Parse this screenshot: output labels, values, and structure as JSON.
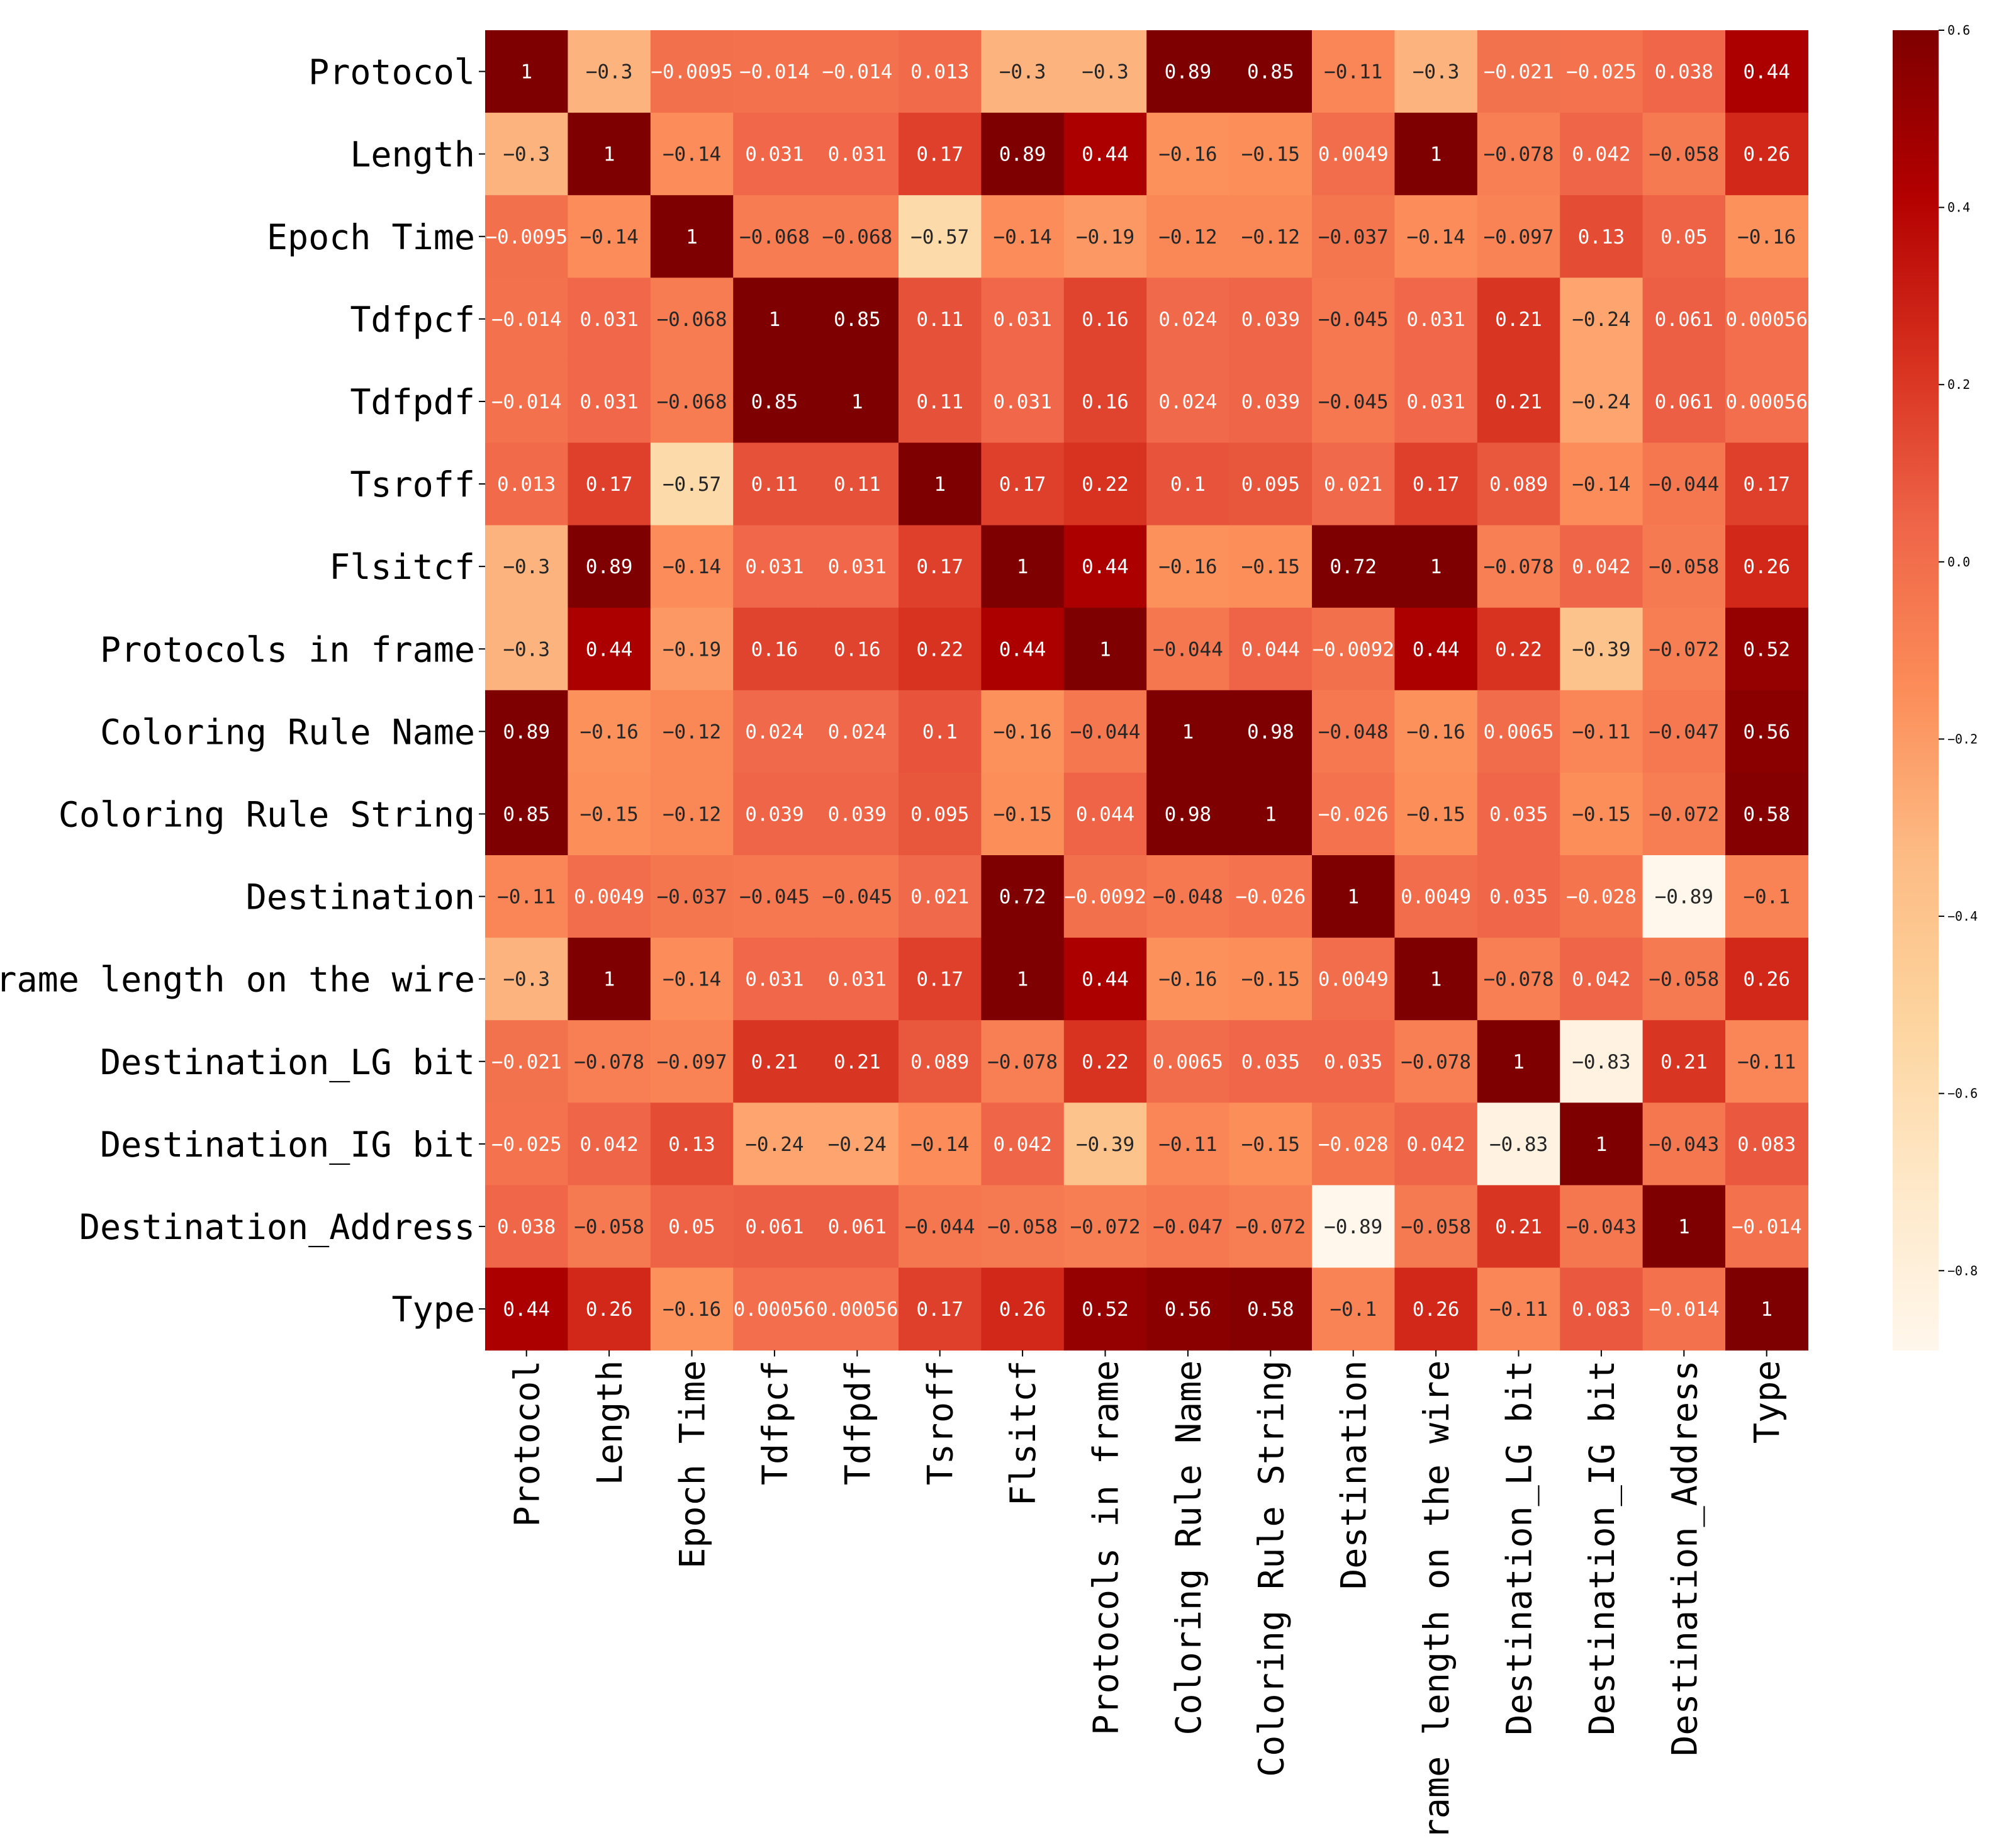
{
  "chart_data": {
    "type": "heatmap",
    "title": "",
    "xlabel": "",
    "ylabel": "",
    "labels": [
      "Protocol",
      "Length",
      "Epoch Time",
      "Tdfpcf",
      "Tdfpdf",
      "Tsroff",
      "Flsitcf",
      "Protocols in frame",
      "Coloring Rule Name",
      "Coloring Rule String",
      "Destination",
      "Frame length on the wire",
      "Destination_LG bit",
      "Destination_IG bit",
      "Destination_Address",
      "Type"
    ],
    "values": [
      [
        1,
        -0.3,
        -0.0095,
        -0.014,
        -0.014,
        0.013,
        -0.3,
        -0.3,
        0.89,
        0.85,
        -0.11,
        -0.3,
        -0.021,
        -0.025,
        0.038,
        0.44
      ],
      [
        -0.3,
        1,
        -0.14,
        0.031,
        0.031,
        0.17,
        0.89,
        0.44,
        -0.16,
        -0.15,
        0.0049,
        1,
        -0.078,
        0.042,
        -0.058,
        0.26
      ],
      [
        -0.0095,
        -0.14,
        1,
        -0.068,
        -0.068,
        -0.57,
        -0.14,
        -0.19,
        -0.12,
        -0.12,
        -0.037,
        -0.14,
        -0.097,
        0.13,
        0.05,
        -0.16
      ],
      [
        -0.014,
        0.031,
        -0.068,
        1,
        0.85,
        0.11,
        0.031,
        0.16,
        0.024,
        0.039,
        -0.045,
        0.031,
        0.21,
        -0.24,
        0.061,
        0.00056
      ],
      [
        -0.014,
        0.031,
        -0.068,
        0.85,
        1,
        0.11,
        0.031,
        0.16,
        0.024,
        0.039,
        -0.045,
        0.031,
        0.21,
        -0.24,
        0.061,
        0.00056
      ],
      [
        0.013,
        0.17,
        -0.57,
        0.11,
        0.11,
        1,
        0.17,
        0.22,
        0.1,
        0.095,
        0.021,
        0.17,
        0.089,
        -0.14,
        -0.044,
        0.17
      ],
      [
        -0.3,
        0.89,
        -0.14,
        0.031,
        0.031,
        0.17,
        1,
        0.44,
        -0.16,
        -0.15,
        0.72,
        1,
        -0.078,
        0.042,
        -0.058,
        0.26
      ],
      [
        -0.3,
        0.44,
        -0.19,
        0.16,
        0.16,
        0.22,
        0.44,
        1,
        -0.044,
        0.044,
        -0.0092,
        0.44,
        0.22,
        -0.39,
        -0.072,
        0.52
      ],
      [
        0.89,
        -0.16,
        -0.12,
        0.024,
        0.024,
        0.1,
        -0.16,
        -0.044,
        1,
        0.98,
        -0.048,
        -0.16,
        0.0065,
        -0.11,
        -0.047,
        0.56
      ],
      [
        0.85,
        -0.15,
        -0.12,
        0.039,
        0.039,
        0.095,
        -0.15,
        0.044,
        0.98,
        1,
        -0.026,
        -0.15,
        0.035,
        -0.15,
        -0.072,
        0.58
      ],
      [
        -0.11,
        0.0049,
        -0.037,
        -0.045,
        -0.045,
        0.021,
        0.72,
        -0.0092,
        -0.048,
        -0.026,
        1,
        0.0049,
        0.035,
        -0.028,
        -0.89,
        -0.1
      ],
      [
        -0.3,
        1,
        -0.14,
        0.031,
        0.031,
        0.17,
        1,
        0.44,
        -0.16,
        -0.15,
        0.0049,
        1,
        -0.078,
        0.042,
        -0.058,
        0.26
      ],
      [
        -0.021,
        -0.078,
        -0.097,
        0.21,
        0.21,
        0.089,
        -0.078,
        0.22,
        0.0065,
        0.035,
        0.035,
        -0.078,
        1,
        -0.83,
        0.21,
        -0.11
      ],
      [
        -0.025,
        0.042,
        0.13,
        -0.24,
        -0.24,
        -0.14,
        0.042,
        -0.39,
        -0.11,
        -0.15,
        -0.028,
        0.042,
        -0.83,
        1,
        -0.043,
        0.083
      ],
      [
        0.038,
        -0.058,
        0.05,
        0.061,
        0.061,
        -0.044,
        -0.058,
        -0.072,
        -0.047,
        -0.072,
        -0.89,
        -0.058,
        0.21,
        -0.043,
        1,
        -0.014
      ],
      [
        0.44,
        0.26,
        -0.16,
        0.00056,
        0.00056,
        0.17,
        0.26,
        0.52,
        0.56,
        0.58,
        -0.1,
        0.26,
        -0.11,
        0.083,
        -0.014,
        1
      ]
    ],
    "colorbar": {
      "vmin": -0.89,
      "vmax": 0.6,
      "ticks": [
        0.6,
        0.4,
        0.2,
        0.0,
        -0.2,
        -0.4,
        -0.6,
        -0.8
      ],
      "tick_labels": [
        "0.6",
        "0.4",
        "0.2",
        "0.0",
        "−0.2",
        "−0.4",
        "−0.6",
        "−0.8"
      ]
    },
    "colormap": {
      "name": "OrRd",
      "stops": [
        "#fff7ec",
        "#fee8c8",
        "#fdd49e",
        "#fdbb84",
        "#fc8d59",
        "#ef6548",
        "#d7301f",
        "#b30000",
        "#7f0000"
      ]
    },
    "text_colors": {
      "on_light": "#262626",
      "on_dark": "#ffffff"
    }
  }
}
